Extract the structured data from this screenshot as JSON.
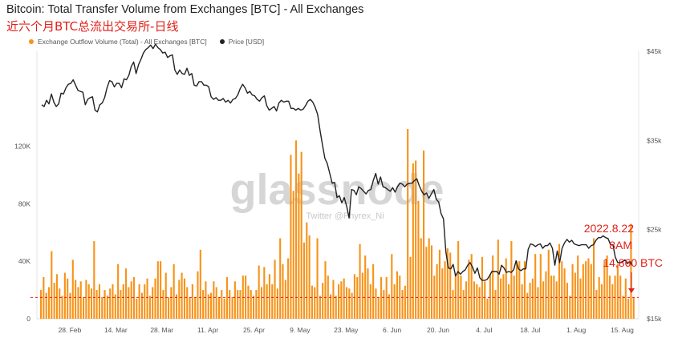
{
  "title": "Bitcoin: Total Transfer Volume from Exchanges [BTC] - All Exchanges",
  "subtitle": "近六个月BTC总流出交易所-日线",
  "legend": {
    "outflow": "Exchange Outflow Volume (Total) - All Exchanges [BTC]",
    "price": "Price [USD]"
  },
  "watermark": "glassnode",
  "watermark_sub": "Twitter @Phyrex_Ni",
  "annotation": {
    "date": "2022.8.22",
    "time": "8AM",
    "value": "14,860 BTC"
  },
  "colors": {
    "bar": "#f7931a",
    "price": "#222222",
    "accent": "#e0211a",
    "legend_outflow": "#f7931a",
    "legend_price": "#222222"
  },
  "chart_data": {
    "type": "bar",
    "x_ticks": [
      "28. Feb",
      "14. Mar",
      "28. Mar",
      "11. Apr",
      "25. Apr",
      "9. May",
      "23. May",
      "6. Jun",
      "20. Jun",
      "4. Jul",
      "18. Jul",
      "1. Aug",
      "15. Aug"
    ],
    "y_left_ticks": [
      "0",
      "40K",
      "80K",
      "120K"
    ],
    "y_right_ticks": [
      "$15k",
      "$25k",
      "$35k",
      "$45k"
    ],
    "ylim_left": [
      0,
      186000
    ],
    "ylim_right": [
      15000,
      45000
    ],
    "reference_line": 14860,
    "series": [
      {
        "name": "Exchange Outflow Volume (Total) - All Exchanges [BTC]",
        "axis": "left",
        "values": [
          20000,
          29000,
          18000,
          22000,
          47000,
          25000,
          31000,
          21000,
          16000,
          32000,
          28000,
          18000,
          41000,
          27000,
          22000,
          26000,
          15000,
          27000,
          24000,
          21000,
          54000,
          20000,
          24000,
          15000,
          20000,
          16000,
          21000,
          24000,
          17000,
          38000,
          20000,
          24000,
          35000,
          22000,
          26000,
          29000,
          14000,
          24000,
          18000,
          24000,
          28000,
          16000,
          22000,
          28000,
          40000,
          40000,
          20000,
          32000,
          15000,
          22000,
          38000,
          17000,
          27000,
          32000,
          28000,
          22000,
          15000,
          24000,
          15000,
          33000,
          48000,
          20000,
          26000,
          17000,
          18000,
          26000,
          22000,
          15000,
          20000,
          14000,
          29000,
          20000,
          15000,
          26000,
          20000,
          20000,
          30000,
          30000,
          23000,
          20000,
          16000,
          20000,
          37000,
          22000,
          36000,
          24000,
          31000,
          24000,
          41000,
          21000,
          56000,
          38000,
          27000,
          42000,
          114000,
          89000,
          124000,
          101000,
          116000,
          53000,
          67000,
          58000,
          23000,
          22000,
          56000,
          16000,
          25000,
          40000,
          30000,
          17000,
          27000,
          16000,
          24000,
          26000,
          28000,
          22000,
          21000,
          18000,
          31000,
          29000,
          52000,
          32000,
          44000,
          35000,
          24000,
          38000,
          21000,
          15000,
          29000,
          20000,
          29000,
          17000,
          45000,
          24000,
          33000,
          30000,
          20000,
          23000,
          132000,
          43000,
          108000,
          110000,
          82000,
          56000,
          117000,
          50000,
          56000,
          51000,
          30000,
          38000,
          48000,
          35000,
          40000,
          49000,
          46000,
          20000,
          31000,
          54000,
          30000,
          20000,
          26000,
          41000,
          45000,
          26000,
          24000,
          22000,
          43000,
          26000,
          14000,
          31000,
          44000,
          20000,
          55000,
          28000,
          31000,
          42000,
          24000,
          54000,
          30000,
          40000,
          40000,
          24000,
          40000,
          18000,
          25000,
          28000,
          45000,
          22000,
          45000,
          26000,
          33000,
          48000,
          30000,
          30000,
          26000,
          52000,
          40000,
          35000,
          25000,
          16000,
          38000,
          32000,
          44000,
          28000,
          38000,
          40000,
          42000,
          38000,
          56000,
          20000,
          29000,
          24000,
          40000,
          44000,
          30000,
          24000,
          30000,
          38000,
          30000,
          16000,
          28000,
          14000,
          66000,
          14860
        ]
      },
      {
        "name": "Price [USD]",
        "axis": "right",
        "type": "line",
        "values": [
          39000,
          38800,
          39500,
          39100,
          40200,
          39300,
          38800,
          39100,
          40300,
          40200,
          40900,
          41300,
          41400,
          41800,
          41200,
          40600,
          40500,
          40400,
          39000,
          39600,
          39800,
          39900,
          38400,
          38200,
          39000,
          39200,
          39800,
          40900,
          41700,
          41600,
          41000,
          41400,
          41400,
          40900,
          41900,
          41800,
          42300,
          43300,
          43800,
          42500,
          43500,
          44100,
          44800,
          45200,
          45400,
          45700,
          45300,
          45800,
          45400,
          45200,
          44800,
          44900,
          44300,
          44500,
          44600,
          42900,
          42400,
          42900,
          42500,
          42400,
          43100,
          42300,
          42500,
          41200,
          41100,
          41600,
          41600,
          41200,
          41200,
          41000,
          39900,
          39600,
          39800,
          39500,
          39500,
          39700,
          39300,
          39500,
          39200,
          39600,
          39700,
          40100,
          40800,
          41300,
          40900,
          40300,
          40500,
          40100,
          40000,
          39600,
          39400,
          39800,
          40000,
          38900,
          38400,
          38600,
          38800,
          38300,
          39200,
          39500,
          39300,
          39400,
          39400,
          38600,
          38600,
          38400,
          38600,
          38400,
          38500,
          38900,
          39400,
          39600,
          39300,
          38700,
          37900,
          36100,
          34500,
          33000,
          32400,
          31300,
          30200,
          30300,
          28600,
          28800,
          28000,
          28600,
          27600,
          26300,
          29500,
          29400,
          28900,
          29800,
          29600,
          29300,
          29000,
          29400,
          29500,
          30500,
          31300,
          30100,
          30900,
          29800,
          29700,
          29500,
          29300,
          29700,
          29200,
          29800,
          30200,
          30100,
          29800,
          30100,
          30200,
          30200,
          30500,
          30700,
          29900,
          29300,
          28900,
          29100,
          28500,
          29000,
          29500,
          28400,
          28100,
          26800,
          26200,
          22500,
          20700,
          20600,
          21100,
          19800,
          20300,
          20000,
          20300,
          20500,
          21000,
          21300,
          20800,
          20100,
          20700,
          19600,
          19300,
          19300,
          19400,
          19800,
          20300,
          20300,
          20300,
          20000,
          21000,
          20700,
          20200,
          20300,
          20200,
          20500,
          21500,
          20600,
          20400,
          20600,
          20600,
          22800,
          23400,
          23300,
          23100,
          23300,
          23400,
          22900,
          23200,
          23200,
          23500,
          22900,
          21000,
          22600,
          21300,
          22900,
          23500,
          23900,
          23600,
          23800,
          23400,
          23300,
          23200,
          23300,
          23300,
          23300,
          22900,
          23200,
          23300,
          23800,
          24100,
          24100,
          24300,
          24100,
          24000,
          23300,
          23300,
          21900,
          21300,
          21300,
          21400,
          21600,
          21200,
          21400,
          21000
        ],
        "xlim_right_fraction_note": "line spans full plot width"
      }
    ],
    "annotation_text": [
      "2022.8.22",
      "8AM",
      "14,860 BTC"
    ]
  }
}
